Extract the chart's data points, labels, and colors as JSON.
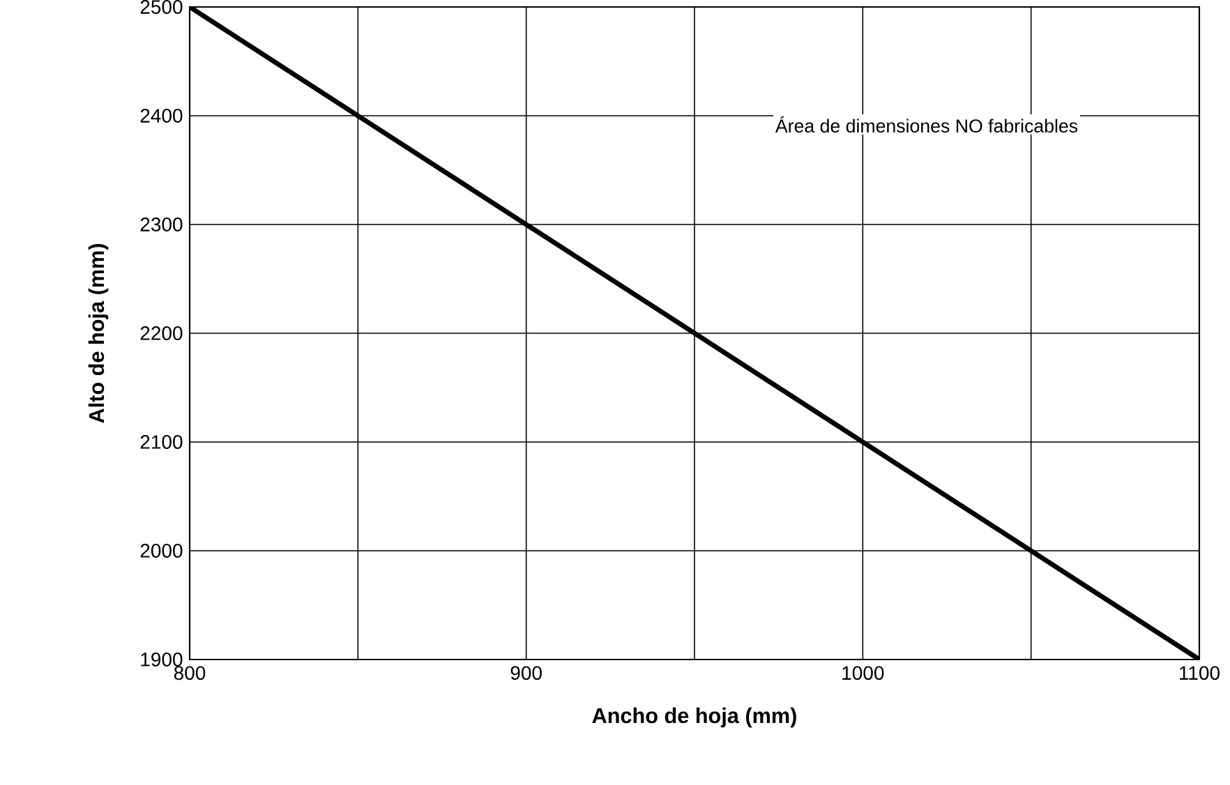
{
  "chart_data": {
    "type": "line",
    "xlabel": "Ancho de hoja (mm)",
    "ylabel": "Alto de hoja (mm)",
    "x": [
      800,
      1100
    ],
    "series": [
      {
        "color": "#000000",
        "values": [
          2500,
          1900
        ]
      }
    ],
    "xlim": [
      800,
      1100
    ],
    "xticks": [
      800,
      {
        "value": 850,
        "label": null
      },
      900,
      {
        "value": 950,
        "label": null
      },
      1000,
      {
        "value": 1050,
        "label": null
      },
      1100
    ],
    "ylim": [
      1900,
      2500
    ],
    "yticks": [
      1900,
      2000,
      2100,
      2200,
      2300,
      2400,
      2500
    ],
    "grid": true,
    "marker": "none",
    "line_style": "solid",
    "annotations": [
      "Área de dimensiones NO fabricables"
    ]
  }
}
